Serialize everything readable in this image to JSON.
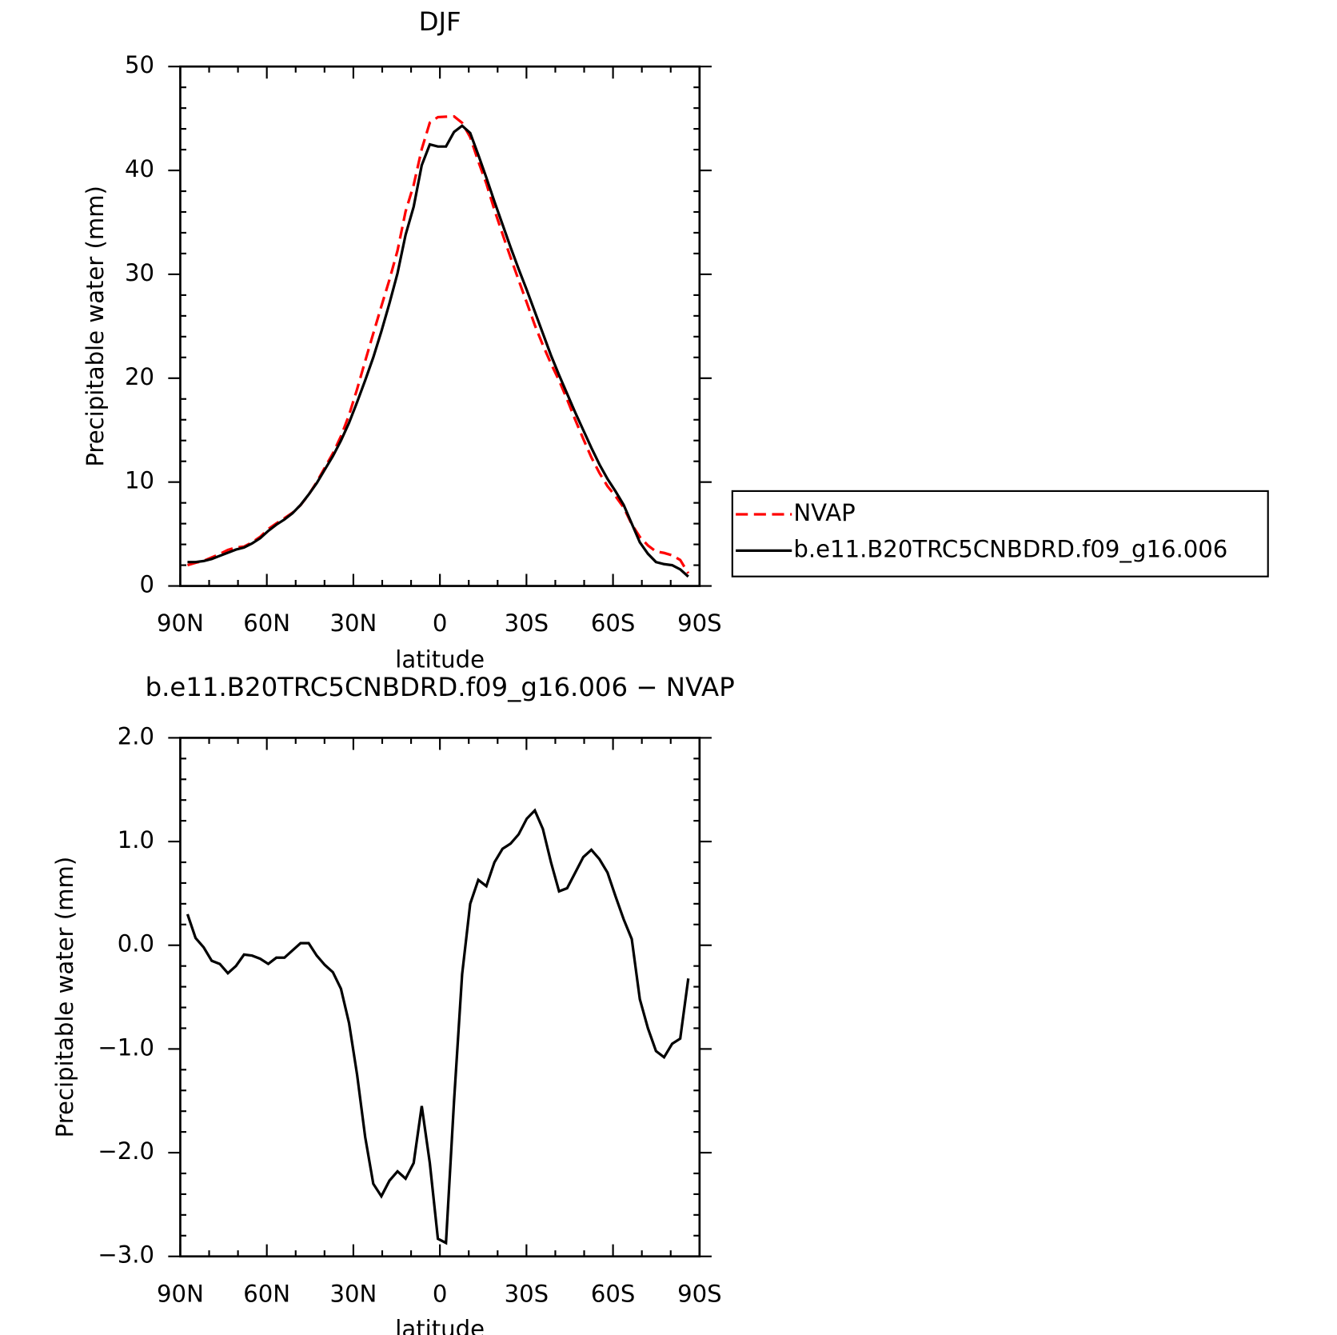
{
  "chart_data": [
    {
      "type": "line",
      "title": "DJF",
      "ylabel": "Precipitable water (mm)",
      "xlabel": "latitude",
      "xlim": [
        90,
        -90
      ],
      "xticks": [
        {
          "value": 90,
          "label": "90N"
        },
        {
          "value": 60,
          "label": "60N"
        },
        {
          "value": 30,
          "label": "30N"
        },
        0,
        {
          "value": -30,
          "label": "30S"
        },
        {
          "value": -60,
          "label": "60S"
        },
        {
          "value": -90,
          "label": "90S"
        }
      ],
      "ylim": [
        0,
        50
      ],
      "yticks": [
        0,
        10,
        20,
        30,
        40,
        50
      ],
      "legend": "right",
      "x": [
        87.5,
        84.7,
        81.9,
        79.1,
        76.3,
        73.5,
        70.7,
        67.9,
        65.1,
        62.3,
        59.5,
        56.7,
        53.9,
        51.1,
        48.3,
        45.5,
        42.7,
        39.9,
        37.1,
        34.3,
        31.5,
        28.7,
        25.9,
        23.1,
        20.3,
        17.5,
        14.7,
        11.9,
        9.1,
        6.3,
        3.5,
        0.7,
        -2.1,
        -4.9,
        -7.7,
        -10.5,
        -13.3,
        -16.1,
        -18.9,
        -21.7,
        -24.5,
        -27.3,
        -30.1,
        -32.9,
        -35.7,
        -38.5,
        -41.3,
        -44.1,
        -46.9,
        -49.7,
        -52.5,
        -55.3,
        -58.1,
        -60.9,
        -63.7,
        -66.5,
        -69.3,
        -72.1,
        -74.9,
        -77.7,
        -80.5,
        -83.3,
        -86.1
      ],
      "series": [
        {
          "name": "NVAP",
          "color": "#ff0000",
          "dashed": true,
          "values": [
            2.0,
            2.23,
            2.42,
            2.75,
            3.08,
            3.47,
            3.7,
            3.79,
            4.2,
            4.73,
            5.48,
            6.02,
            6.52,
            7.05,
            7.78,
            8.78,
            10.0,
            11.39,
            12.76,
            14.42,
            16.45,
            18.95,
            21.65,
            24.3,
            26.92,
            29.47,
            32.28,
            36.05,
            38.6,
            42.05,
            44.6,
            45.13,
            45.17,
            45.2,
            44.58,
            43.2,
            40.87,
            38.73,
            36.2,
            33.87,
            31.62,
            29.43,
            27.28,
            25.1,
            23.18,
            21.4,
            19.78,
            17.95,
            16.0,
            14.15,
            12.38,
            10.87,
            9.6,
            8.63,
            7.55,
            5.94,
            4.72,
            3.9,
            3.32,
            3.18,
            2.95,
            2.5,
            1.22
          ]
        },
        {
          "name": "b.e11.B20TRC5CNBDRD.f09_g16.006",
          "color": "#000000",
          "dashed": false,
          "values": [
            2.3,
            2.3,
            2.4,
            2.6,
            2.9,
            3.2,
            3.5,
            3.7,
            4.1,
            4.6,
            5.3,
            5.9,
            6.4,
            7.0,
            7.8,
            8.8,
            9.9,
            11.2,
            12.5,
            14.0,
            15.7,
            17.7,
            19.8,
            22.0,
            24.5,
            27.2,
            30.1,
            33.8,
            36.5,
            40.5,
            42.5,
            42.3,
            42.3,
            43.7,
            44.3,
            43.6,
            41.5,
            39.3,
            37.0,
            34.8,
            32.6,
            30.5,
            28.5,
            26.4,
            24.3,
            22.2,
            20.3,
            18.5,
            16.7,
            15.0,
            13.3,
            11.7,
            10.3,
            9.1,
            7.8,
            6.0,
            4.2,
            3.1,
            2.3,
            2.1,
            2.0,
            1.6,
            0.9
          ]
        }
      ]
    },
    {
      "type": "line",
      "title": "b.e11.B20TRC5CNBDRD.f09_g16.006 − NVAP",
      "ylabel": "Precipitable water (mm)",
      "xlabel": "latitude",
      "xlim": [
        90,
        -90
      ],
      "xticks": [
        {
          "value": 90,
          "label": "90N"
        },
        {
          "value": 60,
          "label": "60N"
        },
        {
          "value": 30,
          "label": "30N"
        },
        0,
        {
          "value": -30,
          "label": "30S"
        },
        {
          "value": -60,
          "label": "60S"
        },
        {
          "value": -90,
          "label": "90S"
        }
      ],
      "ylim": [
        -3,
        2
      ],
      "yticks": [
        {
          "value": -3,
          "label": "−3.0"
        },
        {
          "value": -2,
          "label": "−2.0"
        },
        {
          "value": -1,
          "label": "−1.0"
        },
        {
          "value": 0,
          "label": "0.0"
        },
        {
          "value": 1,
          "label": "1.0"
        },
        {
          "value": 2,
          "label": "2.0"
        }
      ],
      "color": "#000000",
      "x": [
        87.5,
        84.7,
        81.9,
        79.1,
        76.3,
        73.5,
        70.7,
        67.9,
        65.1,
        62.3,
        59.5,
        56.7,
        53.9,
        51.1,
        48.3,
        45.5,
        42.7,
        39.9,
        37.1,
        34.3,
        31.5,
        28.7,
        25.9,
        23.1,
        20.3,
        17.5,
        14.7,
        11.9,
        9.1,
        6.3,
        3.5,
        0.7,
        -2.1,
        -4.9,
        -7.7,
        -10.5,
        -13.3,
        -16.1,
        -18.9,
        -21.7,
        -24.5,
        -27.3,
        -30.1,
        -32.9,
        -35.7,
        -38.5,
        -41.3,
        -44.1,
        -46.9,
        -49.7,
        -52.5,
        -55.3,
        -58.1,
        -60.9,
        -63.7,
        -66.5,
        -69.3,
        -72.1,
        -74.9,
        -77.7,
        -80.5,
        -83.3,
        -86.1
      ],
      "values": [
        0.3,
        0.07,
        -0.02,
        -0.15,
        -0.18,
        -0.27,
        -0.2,
        -0.09,
        -0.1,
        -0.13,
        -0.18,
        -0.12,
        -0.12,
        -0.05,
        0.02,
        0.02,
        -0.1,
        -0.19,
        -0.26,
        -0.42,
        -0.75,
        -1.25,
        -1.85,
        -2.3,
        -2.42,
        -2.27,
        -2.18,
        -2.25,
        -2.1,
        -1.55,
        -2.1,
        -2.83,
        -2.87,
        -1.5,
        -0.28,
        0.4,
        0.63,
        0.57,
        0.8,
        0.93,
        0.98,
        1.07,
        1.22,
        1.3,
        1.12,
        0.8,
        0.52,
        0.55,
        0.7,
        0.85,
        0.92,
        0.83,
        0.7,
        0.47,
        0.25,
        0.06,
        -0.52,
        -0.8,
        -1.02,
        -1.08,
        -0.95,
        -0.9,
        -0.32
      ]
    }
  ]
}
